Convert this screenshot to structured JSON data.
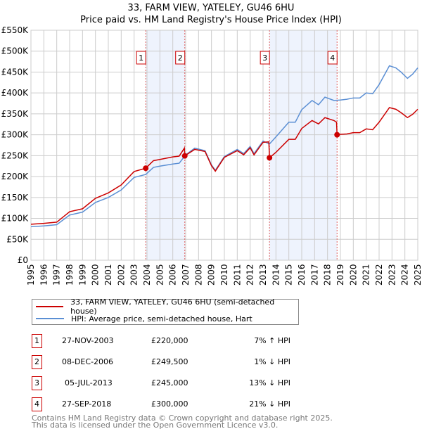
{
  "title": "33, FARM VIEW, YATELEY, GU46 6HU",
  "subtitle": "Price paid vs. HM Land Registry's House Price Index (HPI)",
  "colors": {
    "property": "#cc0000",
    "hpi": "#5b8fd4",
    "shade": "#eef3fd"
  },
  "chart_data": {
    "type": "line",
    "title": "33, FARM VIEW, YATELEY, GU46 6HU",
    "subtitle": "Price paid vs. HM Land Registry's House Price Index (HPI)",
    "xlim": [
      1995,
      2025
    ],
    "ylim": [
      0,
      550000
    ],
    "yticks": [
      0,
      50000,
      100000,
      150000,
      200000,
      250000,
      300000,
      350000,
      400000,
      450000,
      500000,
      550000
    ],
    "ytick_labels": [
      "£0",
      "£50K",
      "£100K",
      "£150K",
      "£200K",
      "£250K",
      "£300K",
      "£350K",
      "£400K",
      "£450K",
      "£500K",
      "£550K"
    ],
    "xticks": [
      "1995",
      "1996",
      "1997",
      "1998",
      "1999",
      "2000",
      "2001",
      "2002",
      "2003",
      "2004",
      "2005",
      "2006",
      "2007",
      "2008",
      "2009",
      "2010",
      "2011",
      "2012",
      "2013",
      "2014",
      "2015",
      "2016",
      "2017",
      "2018",
      "2019",
      "2020",
      "2021",
      "2022",
      "2023",
      "2024",
      "2025"
    ],
    "grid": true,
    "series": [
      {
        "name": "33, FARM VIEW, YATELEY, GU46 6HU (semi-detached house)",
        "x": [
          1995,
          1996,
          1997,
          1998,
          1999,
          2000,
          2001,
          2002,
          2003,
          2003.9,
          2004.5,
          2005,
          2006,
          2006.5,
          2006.9,
          2006.93,
          2007.7,
          2008.5,
          2009,
          2009.3,
          2010,
          2011,
          2011.5,
          2012,
          2012.3,
          2013,
          2013.45,
          2013.5,
          2014,
          2015,
          2015.5,
          2016,
          2016.8,
          2017.3,
          2017.8,
          2018.5,
          2018.7,
          2018.74,
          2019,
          2019.5,
          2020,
          2020.5,
          2021,
          2021.5,
          2022,
          2022.8,
          2023.3,
          2023.7,
          2024.2,
          2024.6,
          2025
        ],
        "y": [
          86000,
          88000,
          91000,
          116000,
          123000,
          148000,
          161000,
          180000,
          212000,
          220000,
          238000,
          241000,
          247000,
          249000,
          268000,
          249500,
          265000,
          260000,
          226000,
          213000,
          246000,
          262000,
          252000,
          269000,
          252000,
          282000,
          283000,
          245000,
          258000,
          289000,
          289000,
          315000,
          334000,
          326000,
          341000,
          334000,
          330000,
          300000,
          301000,
          302000,
          305000,
          305000,
          314000,
          312000,
          330000,
          365000,
          361000,
          353000,
          341000,
          349000,
          361000
        ]
      },
      {
        "name": "HPI: Average price, semi-detached house, Hart",
        "x": [
          1995,
          1996,
          1997,
          1998,
          1999,
          2000,
          2001,
          2002,
          2003,
          2003.9,
          2004.5,
          2005,
          2006,
          2006.5,
          2007,
          2007.7,
          2008.5,
          2009,
          2009.3,
          2010,
          2011,
          2011.5,
          2012,
          2012.3,
          2013,
          2013.5,
          2014,
          2015,
          2015.5,
          2016,
          2016.8,
          2017.3,
          2017.8,
          2018.5,
          2019,
          2019.5,
          2020,
          2020.5,
          2021,
          2021.5,
          2022,
          2022.8,
          2023.3,
          2023.7,
          2024.2,
          2024.6,
          2025
        ],
        "y": [
          80000,
          82000,
          85000,
          108000,
          115000,
          138000,
          150000,
          168000,
          198000,
          205000,
          222000,
          225000,
          230000,
          232000,
          252000,
          268000,
          262000,
          228000,
          215000,
          248000,
          265000,
          255000,
          272000,
          255000,
          285000,
          278000,
          295000,
          330000,
          330000,
          360000,
          382000,
          372000,
          390000,
          382000,
          383000,
          385000,
          388000,
          388000,
          400000,
          398000,
          420000,
          465000,
          460000,
          450000,
          435000,
          445000,
          460000
        ]
      }
    ],
    "sales": [
      {
        "label": "1",
        "x": 2003.9,
        "date": "27-NOV-2003",
        "price": 220000,
        "price_label": "£220,000",
        "hpi_diff": "7% ↑ HPI"
      },
      {
        "label": "2",
        "x": 2006.93,
        "date": "08-DEC-2006",
        "price": 249500,
        "price_label": "£249,500",
        "hpi_diff": "1% ↓ HPI"
      },
      {
        "label": "3",
        "x": 2013.5,
        "date": "05-JUL-2013",
        "price": 245000,
        "price_label": "£245,000",
        "hpi_diff": "13% ↓ HPI"
      },
      {
        "label": "4",
        "x": 2018.74,
        "date": "27-SEP-2018",
        "price": 300000,
        "price_label": "£300,000",
        "hpi_diff": "21% ↓ HPI"
      }
    ],
    "shaded": [
      [
        2003.9,
        2006.93
      ],
      [
        2013.5,
        2018.74
      ]
    ]
  },
  "legend": {
    "property": "33, FARM VIEW, YATELEY, GU46 6HU (semi-detached house)",
    "hpi": "HPI: Average price, semi-detached house, Hart"
  },
  "footer": {
    "line1": "Contains HM Land Registry data © Crown copyright and database right 2025.",
    "line2": "This data is licensed under the Open Government Licence v3.0."
  }
}
